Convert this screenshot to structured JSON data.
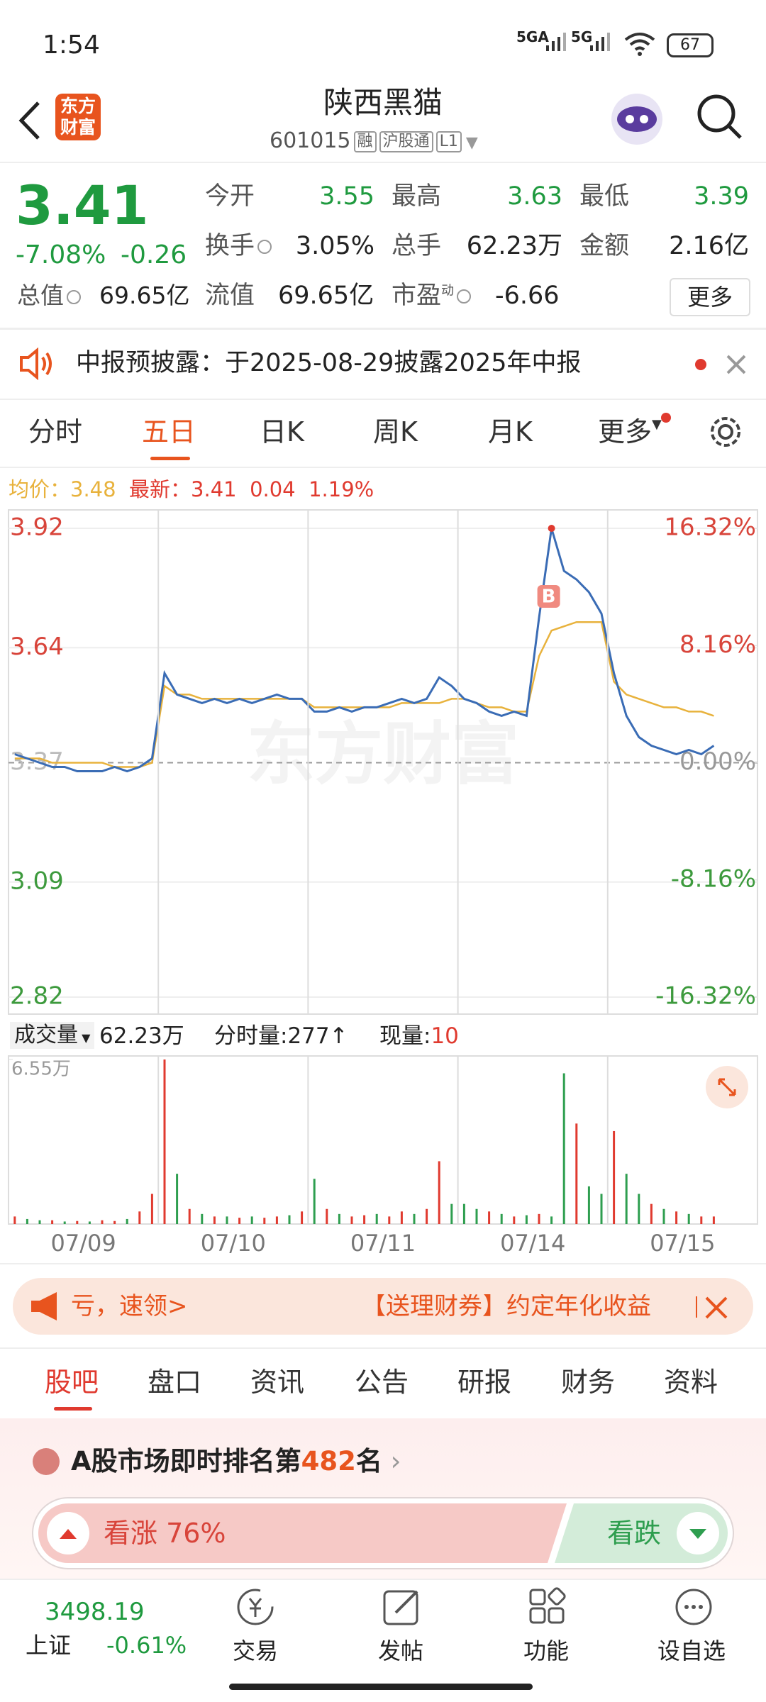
{
  "status_bar": {
    "time": "1:54",
    "network1": "5GA",
    "network2": "5G",
    "battery": "67"
  },
  "header": {
    "logo": "东方财富",
    "title": "陕西黑猫",
    "code": "601015",
    "tags": [
      "融",
      "沪股通",
      "L1"
    ]
  },
  "quote": {
    "price": "3.41",
    "change_pct": "-7.08%",
    "change": "-0.26",
    "open_label": "今开",
    "open": "3.55",
    "high_label": "最高",
    "high": "3.63",
    "low_label": "最低",
    "low": "3.39",
    "turnover_label": "换手",
    "turnover": "3.05%",
    "volume_label": "总手",
    "volume": "62.23万",
    "amount_label": "金额",
    "amount": "2.16亿",
    "mktcap_label": "总值",
    "mktcap": "69.65亿",
    "float_label": "流值",
    "float": "69.65亿",
    "pe_label": "市盈",
    "pe_sup": "动",
    "pe": "-6.66",
    "more": "更多"
  },
  "notice": {
    "text": "中报预披露：于2025-08-29披露2025年中报"
  },
  "period_tabs": [
    "分时",
    "五日",
    "日K",
    "周K",
    "月K",
    "更多"
  ],
  "info_bar": {
    "avg_label": "均价：",
    "avg": "3.48",
    "last_label": "最新：",
    "last": "3.41",
    "change": "0.04",
    "change_pct": "1.19%"
  },
  "volume_bar": {
    "label": "成交量",
    "total": "62.23万",
    "tick_label": "分时量:",
    "tick": "277↑",
    "now_label": "现量:",
    "now": "10"
  },
  "chart_data": [
    {
      "type": "line",
      "watermark": "东方财富",
      "annotation": "B",
      "ylim": [
        2.82,
        3.92
      ],
      "yticks": [
        3.92,
        3.64,
        3.37,
        3.09,
        2.82
      ],
      "y2lim": [
        -16.32,
        16.32
      ],
      "y2ticks": [
        {
          "value": 16.32,
          "label": "16.32%"
        },
        {
          "value": 8.16,
          "label": "8.16%"
        },
        {
          "value": 0,
          "label": "0.00%"
        },
        {
          "value": -8.16,
          "label": "-8.16%"
        },
        {
          "value": -16.32,
          "label": "-16.32%"
        }
      ],
      "series": [
        {
          "name": "最新",
          "color": "#3a6cb5",
          "values": [
            3.39,
            3.38,
            3.37,
            3.36,
            3.36,
            3.35,
            3.35,
            3.35,
            3.36,
            3.35,
            3.36,
            3.38,
            3.58,
            3.53,
            3.52,
            3.51,
            3.52,
            3.51,
            3.52,
            3.51,
            3.52,
            3.53,
            3.52,
            3.52,
            3.49,
            3.49,
            3.5,
            3.49,
            3.5,
            3.5,
            3.51,
            3.52,
            3.51,
            3.52,
            3.57,
            3.55,
            3.52,
            3.51,
            3.49,
            3.48,
            3.49,
            3.48,
            3.71,
            3.92,
            3.82,
            3.8,
            3.77,
            3.72,
            3.58,
            3.48,
            3.43,
            3.41,
            3.4,
            3.39,
            3.4,
            3.39,
            3.41,
            null,
            null,
            null
          ]
        },
        {
          "name": "均价",
          "color": "#e8b23c",
          "values": [
            3.38,
            3.38,
            3.38,
            3.37,
            3.37,
            3.37,
            3.37,
            3.37,
            3.36,
            3.36,
            3.36,
            3.37,
            3.55,
            3.53,
            3.53,
            3.52,
            3.52,
            3.52,
            3.52,
            3.52,
            3.52,
            3.52,
            3.52,
            3.52,
            3.5,
            3.5,
            3.5,
            3.5,
            3.5,
            3.5,
            3.5,
            3.51,
            3.51,
            3.51,
            3.51,
            3.52,
            3.52,
            3.51,
            3.5,
            3.5,
            3.49,
            3.49,
            3.62,
            3.68,
            3.69,
            3.7,
            3.7,
            3.7,
            3.56,
            3.53,
            3.52,
            3.51,
            3.5,
            3.5,
            3.49,
            3.49,
            3.48,
            null,
            null,
            null
          ]
        }
      ]
    },
    {
      "type": "bar",
      "ylim": [
        0,
        65500
      ],
      "yticks": [
        {
          "value": 65500,
          "label": "6.55万"
        }
      ],
      "x_labels": [
        "07/09",
        "07/10",
        "07/11",
        "07/14",
        "07/15"
      ],
      "values": [
        3000,
        2000,
        1500,
        1500,
        1000,
        1200,
        1000,
        1500,
        1200,
        2000,
        5000,
        12000,
        65500,
        20000,
        6000,
        4000,
        3000,
        3000,
        2500,
        3000,
        2500,
        3000,
        3500,
        5000,
        18000,
        6000,
        4000,
        3000,
        3500,
        4000,
        3000,
        5000,
        4000,
        6000,
        25000,
        8000,
        8000,
        6000,
        5000,
        4000,
        3000,
        3500,
        4000,
        3000,
        60000,
        40000,
        15000,
        12000,
        37000,
        20000,
        12000,
        8000,
        6000,
        5000,
        4000,
        3000,
        3000,
        null,
        null,
        null
      ],
      "colors": [
        "#e03a2f",
        "#2e9e4f",
        "#2e9e4f",
        "#e03a2f",
        "#2e9e4f",
        "#e03a2f",
        "#2e9e4f",
        "#e03a2f",
        "#e03a2f",
        "#2e9e4f",
        "#e03a2f",
        "#e03a2f",
        "#e03a2f",
        "#2e9e4f",
        "#e03a2f",
        "#2e9e4f",
        "#e03a2f",
        "#2e9e4f",
        "#e03a2f",
        "#2e9e4f",
        "#e03a2f",
        "#e03a2f",
        "#2e9e4f",
        "#e03a2f",
        "#2e9e4f",
        "#e03a2f",
        "#2e9e4f",
        "#e03a2f",
        "#e03a2f",
        "#2e9e4f",
        "#e03a2f",
        "#e03a2f",
        "#2e9e4f",
        "#e03a2f",
        "#e03a2f",
        "#2e9e4f",
        "#2e9e4f",
        "#2e9e4f",
        "#e03a2f",
        "#2e9e4f",
        "#e03a2f",
        "#2e9e4f",
        "#e03a2f",
        "#2e9e4f",
        "#2e9e4f",
        "#e03a2f",
        "#2e9e4f",
        "#2e9e4f",
        "#e03a2f",
        "#2e9e4f",
        "#2e9e4f",
        "#e03a2f",
        "#2e9e4f",
        "#e03a2f",
        "#2e9e4f",
        "#e03a2f",
        "#e03a2f",
        null,
        null,
        null
      ]
    }
  ],
  "banner": {
    "left": "亏，速领>",
    "right": "【送理财券】约定年化收益"
  },
  "content_tabs": [
    "股吧",
    "盘口",
    "资讯",
    "公告",
    "研报",
    "财务",
    "资料"
  ],
  "ranking": {
    "prefix": "A股市场即时排名第",
    "rank": "482",
    "suffix": "名"
  },
  "sentiment": {
    "bull": "看涨 76%",
    "bear": "看跌"
  },
  "bottom_nav": {
    "index_value": "3498.19",
    "index_name": "上证",
    "index_change": "-0.61%",
    "items": [
      "交易",
      "发帖",
      "功能",
      "设自选"
    ]
  }
}
